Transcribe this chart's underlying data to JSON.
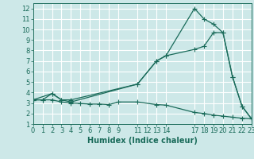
{
  "line1_x": [
    0,
    1,
    2,
    3,
    4,
    11,
    13,
    14,
    17,
    18,
    19,
    20,
    21,
    22,
    23
  ],
  "line1_y": [
    3.3,
    3.3,
    3.9,
    3.3,
    3.3,
    4.8,
    7.0,
    7.5,
    12.0,
    11.0,
    10.5,
    9.7,
    5.5,
    2.7,
    1.5
  ],
  "line2_x": [
    0,
    2,
    3,
    4,
    11,
    13,
    14,
    17,
    18,
    19,
    20,
    21,
    22,
    23
  ],
  "line2_y": [
    3.3,
    3.9,
    3.3,
    3.1,
    4.8,
    7.0,
    7.5,
    8.1,
    8.4,
    9.7,
    9.7,
    5.5,
    2.7,
    1.5
  ],
  "line3_x": [
    0,
    1,
    2,
    3,
    4,
    5,
    6,
    7,
    8,
    9,
    11,
    13,
    14,
    17,
    18,
    19,
    20,
    21,
    22,
    23
  ],
  "line3_y": [
    3.3,
    3.3,
    3.3,
    3.1,
    3.0,
    2.95,
    2.9,
    2.9,
    2.85,
    3.1,
    3.1,
    2.85,
    2.8,
    2.1,
    2.0,
    1.85,
    1.75,
    1.65,
    1.55,
    1.5
  ],
  "color": "#1a6b5a",
  "bg_color": "#cde8e8",
  "grid_color": "#ffffff",
  "xlabel": "Humidex (Indice chaleur)",
  "xlim": [
    0,
    23
  ],
  "ylim": [
    1,
    12.5
  ],
  "xticks": [
    0,
    1,
    2,
    3,
    4,
    5,
    6,
    7,
    8,
    9,
    11,
    12,
    13,
    14,
    17,
    18,
    19,
    20,
    21,
    22,
    23
  ],
  "yticks": [
    1,
    2,
    3,
    4,
    5,
    6,
    7,
    8,
    9,
    10,
    11,
    12
  ],
  "label_fontsize": 7,
  "tick_fontsize": 6
}
